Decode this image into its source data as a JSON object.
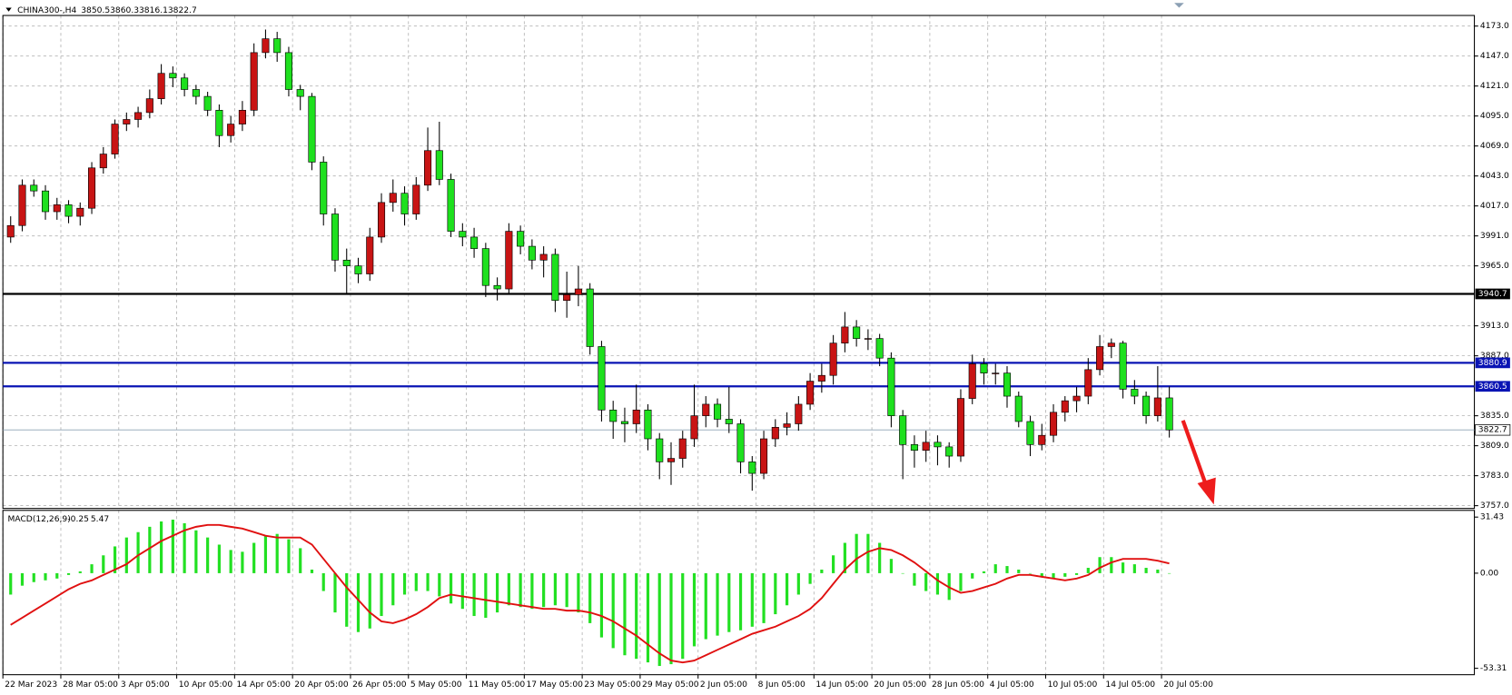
{
  "chart_data": [
    {
      "type": "candlestick",
      "title": "CHINA300-,H4",
      "up_color": "#c81414",
      "down_color": "#1ee01e",
      "candles": [
        [
          3990,
          4008,
          3985,
          4000
        ],
        [
          4000,
          4040,
          3995,
          4035
        ],
        [
          4035,
          4040,
          4025,
          4030
        ],
        [
          4030,
          4035,
          4005,
          4012
        ],
        [
          4012,
          4024,
          4005,
          4018
        ],
        [
          4018,
          4022,
          4002,
          4008
        ],
        [
          4008,
          4020,
          4000,
          4015
        ],
        [
          4015,
          4055,
          4010,
          4050
        ],
        [
          4050,
          4068,
          4045,
          4062
        ],
        [
          4062,
          4092,
          4058,
          4088
        ],
        [
          4088,
          4098,
          4082,
          4092
        ],
        [
          4092,
          4103,
          4085,
          4098
        ],
        [
          4098,
          4118,
          4093,
          4110
        ],
        [
          4110,
          4140,
          4105,
          4132
        ],
        [
          4132,
          4138,
          4120,
          4128
        ],
        [
          4128,
          4132,
          4112,
          4118
        ],
        [
          4118,
          4122,
          4105,
          4112
        ],
        [
          4112,
          4116,
          4095,
          4100
        ],
        [
          4100,
          4105,
          4068,
          4078
        ],
        [
          4078,
          4095,
          4072,
          4088
        ],
        [
          4088,
          4108,
          4082,
          4100
        ],
        [
          4100,
          4158,
          4095,
          4150
        ],
        [
          4150,
          4170,
          4145,
          4162
        ],
        [
          4162,
          4168,
          4142,
          4150
        ],
        [
          4150,
          4155,
          4112,
          4118
        ],
        [
          4118,
          4122,
          4100,
          4112
        ],
        [
          4112,
          4115,
          4048,
          4055
        ],
        [
          4055,
          4060,
          4000,
          4010
        ],
        [
          4010,
          4015,
          3960,
          3970
        ],
        [
          3970,
          3980,
          3940,
          3965
        ],
        [
          3965,
          3972,
          3950,
          3958
        ],
        [
          3958,
          3998,
          3952,
          3990
        ],
        [
          3990,
          4028,
          3985,
          4020
        ],
        [
          4020,
          4040,
          4012,
          4028
        ],
        [
          4028,
          4034,
          4000,
          4010
        ],
        [
          4010,
          4042,
          4005,
          4035
        ],
        [
          4035,
          4085,
          4030,
          4065
        ],
        [
          4065,
          4090,
          4035,
          4040
        ],
        [
          4040,
          4045,
          3990,
          3995
        ],
        [
          3995,
          4002,
          3982,
          3990
        ],
        [
          3990,
          3998,
          3972,
          3980
        ],
        [
          3980,
          3985,
          3938,
          3948
        ],
        [
          3948,
          3955,
          3935,
          3945
        ],
        [
          3945,
          4002,
          3940,
          3995
        ],
        [
          3995,
          4000,
          3975,
          3982
        ],
        [
          3982,
          3988,
          3962,
          3970
        ],
        [
          3970,
          3982,
          3955,
          3975
        ],
        [
          3975,
          3980,
          3925,
          3935
        ],
        [
          3935,
          3960,
          3920,
          3940
        ],
        [
          3940,
          3965,
          3930,
          3945
        ],
        [
          3945,
          3950,
          3888,
          3895
        ],
        [
          3895,
          3900,
          3830,
          3840
        ],
        [
          3840,
          3848,
          3815,
          3830
        ],
        [
          3830,
          3842,
          3812,
          3828
        ],
        [
          3828,
          3862,
          3820,
          3840
        ],
        [
          3840,
          3845,
          3805,
          3815
        ],
        [
          3815,
          3820,
          3780,
          3795
        ],
        [
          3795,
          3812,
          3775,
          3798
        ],
        [
          3798,
          3822,
          3790,
          3815
        ],
        [
          3815,
          3862,
          3808,
          3835
        ],
        [
          3835,
          3852,
          3825,
          3845
        ],
        [
          3845,
          3850,
          3825,
          3832
        ],
        [
          3832,
          3860,
          3820,
          3828
        ],
        [
          3828,
          3832,
          3785,
          3795
        ],
        [
          3795,
          3800,
          3770,
          3785
        ],
        [
          3785,
          3822,
          3780,
          3815
        ],
        [
          3815,
          3832,
          3808,
          3825
        ],
        [
          3825,
          3838,
          3818,
          3828
        ],
        [
          3828,
          3852,
          3822,
          3845
        ],
        [
          3845,
          3872,
          3840,
          3865
        ],
        [
          3865,
          3880,
          3855,
          3870
        ],
        [
          3870,
          3905,
          3862,
          3898
        ],
        [
          3898,
          3925,
          3890,
          3912
        ],
        [
          3912,
          3918,
          3895,
          3902
        ],
        [
          3902,
          3910,
          3892,
          3902
        ],
        [
          3902,
          3906,
          3878,
          3885
        ],
        [
          3885,
          3890,
          3825,
          3835
        ],
        [
          3835,
          3840,
          3780,
          3810
        ],
        [
          3810,
          3818,
          3790,
          3805
        ],
        [
          3805,
          3822,
          3795,
          3812
        ],
        [
          3812,
          3818,
          3792,
          3808
        ],
        [
          3808,
          3812,
          3790,
          3800
        ],
        [
          3800,
          3858,
          3795,
          3850
        ],
        [
          3850,
          3888,
          3845,
          3880
        ],
        [
          3880,
          3885,
          3862,
          3872
        ],
        [
          3872,
          3880,
          3862,
          3872
        ],
        [
          3872,
          3878,
          3842,
          3852
        ],
        [
          3852,
          3856,
          3825,
          3830
        ],
        [
          3830,
          3835,
          3800,
          3810
        ],
        [
          3810,
          3828,
          3805,
          3818
        ],
        [
          3818,
          3845,
          3812,
          3838
        ],
        [
          3838,
          3852,
          3830,
          3848
        ],
        [
          3848,
          3860,
          3838,
          3852
        ],
        [
          3852,
          3885,
          3845,
          3875
        ],
        [
          3875,
          3905,
          3870,
          3895
        ],
        [
          3895,
          3902,
          3885,
          3898
        ],
        [
          3898,
          3900,
          3850,
          3858
        ],
        [
          3858,
          3866,
          3845,
          3852
        ],
        [
          3852,
          3856,
          3828,
          3835
        ],
        [
          3835,
          3878,
          3830,
          3850.5
        ],
        [
          3850.5,
          3860.3,
          3816.1,
          3822.7
        ]
      ],
      "xlim": [
        0,
        127
      ],
      "xticks": [
        {
          "value": 0,
          "label": "22 Mar 2023"
        },
        {
          "value": 5,
          "label": "28 Mar 05:00"
        },
        {
          "value": 10,
          "label": "3 Apr 05:00"
        },
        {
          "value": 15,
          "label": "10 Apr 05:00"
        },
        {
          "value": 20,
          "label": "14 Apr 05:00"
        },
        {
          "value": 25,
          "label": "20 Apr 05:00"
        },
        {
          "value": 30,
          "label": "26 Apr 05:00"
        },
        {
          "value": 35,
          "label": "5 May 05:00"
        },
        {
          "value": 40,
          "label": "11 May 05:00"
        },
        {
          "value": 45,
          "label": "17 May 05:00"
        },
        {
          "value": 50,
          "label": "23 May 05:00"
        },
        {
          "value": 55,
          "label": "29 May 05:00"
        },
        {
          "value": 60,
          "label": "2 Jun 05:00"
        },
        {
          "value": 65,
          "label": "8 Jun 05:00"
        },
        {
          "value": 70,
          "label": "14 Jun 05:00"
        },
        {
          "value": 75,
          "label": "20 Jun 05:00"
        },
        {
          "value": 80,
          "label": "28 Jun 05:00"
        },
        {
          "value": 85,
          "label": "4 Jul 05:00"
        },
        {
          "value": 90,
          "label": "10 Jul 05:00"
        },
        {
          "value": 95,
          "label": "14 Jul 05:00"
        },
        {
          "value": 100,
          "label": "20 Jul 05:00"
        }
      ],
      "ylim": [
        3754.6,
        4182.2
      ],
      "yticks": [
        {
          "value": 4173,
          "label": "4173.0"
        },
        {
          "value": 4147,
          "label": "4147.0"
        },
        {
          "value": 4121,
          "label": "4121.0"
        },
        {
          "value": 4095,
          "label": "4095.0"
        },
        {
          "value": 4069,
          "label": "4069.0"
        },
        {
          "value": 4043,
          "label": "4043.0"
        },
        {
          "value": 4017,
          "label": "4017.0"
        },
        {
          "value": 3991,
          "label": "3991.0"
        },
        {
          "value": 3965,
          "label": "3965.0"
        },
        {
          "value": 3913,
          "label": "3913.0"
        },
        {
          "value": 3887,
          "label": "3887.0"
        },
        {
          "value": 3835,
          "label": "3835.0"
        },
        {
          "value": 3809,
          "label": "3809.0"
        },
        {
          "value": 3783,
          "label": "3783.0"
        },
        {
          "value": 3757,
          "label": "3757.0"
        }
      ],
      "levels": [
        {
          "value": 3940.7,
          "color": "#000000"
        },
        {
          "value": 3880.9,
          "color": "#0a14b4"
        },
        {
          "value": 3860.5,
          "color": "#0a14b4"
        }
      ],
      "grid": true
    },
    {
      "type": "macd",
      "title": "MACD(12,26,9)",
      "histogram_color": "#22e022",
      "signal_color": "#e01010",
      "histogram": [
        -12,
        -7,
        -5,
        -4,
        -3,
        -1,
        1,
        5,
        10,
        15,
        20,
        23,
        26,
        29,
        30,
        28,
        24,
        20,
        16,
        13,
        12,
        17,
        21,
        22,
        19,
        14,
        2,
        -10,
        -22,
        -30,
        -33,
        -31,
        -24,
        -18,
        -12,
        -10,
        -10,
        -13,
        -17,
        -20,
        -24,
        -25,
        -22,
        -18,
        -19,
        -20,
        -19,
        -18,
        -19,
        -22,
        -28,
        -36,
        -42,
        -46,
        -48,
        -50,
        -52,
        -51,
        -48,
        -41,
        -37,
        -35,
        -33,
        -32,
        -30,
        -28,
        -23,
        -18,
        -12,
        -6,
        2,
        10,
        17,
        22,
        22,
        17,
        8,
        0,
        -7,
        -10,
        -12,
        -15,
        -10,
        -3,
        1,
        5,
        4,
        2,
        0,
        -2,
        -3,
        -2,
        -1,
        3,
        9,
        9,
        6,
        5,
        3,
        2,
        -0.25
      ],
      "signal": [
        -29,
        -25,
        -21,
        -17,
        -13,
        -9,
        -6,
        -4,
        -1,
        2,
        5,
        10,
        14,
        18,
        21,
        24,
        26,
        27,
        27,
        26,
        25,
        23,
        21,
        20,
        20,
        20,
        16,
        8,
        0,
        -8,
        -15,
        -22,
        -27,
        -28,
        -26,
        -23,
        -19,
        -14,
        -12,
        -13,
        -14,
        -15,
        -16,
        -17,
        -18,
        -19,
        -20,
        -20,
        -21,
        -21,
        -22,
        -24,
        -27,
        -31,
        -35,
        -40,
        -45,
        -49,
        -50,
        -49,
        -46,
        -43,
        -40,
        -37,
        -34,
        -32,
        -30,
        -27,
        -24,
        -20,
        -14,
        -6,
        2,
        8,
        12,
        14,
        13,
        10,
        6,
        1,
        -4,
        -8,
        -11,
        -10,
        -8,
        -6,
        -3,
        -1,
        -1,
        -2,
        -3,
        -4,
        -3,
        -1,
        3,
        6,
        8,
        8,
        8,
        7,
        5.47
      ],
      "ylim": [
        -56.9,
        35.2
      ],
      "yticks": [
        31.43,
        {
          "value": 0,
          "label": "0.00"
        },
        -53.31
      ]
    }
  ]
}
